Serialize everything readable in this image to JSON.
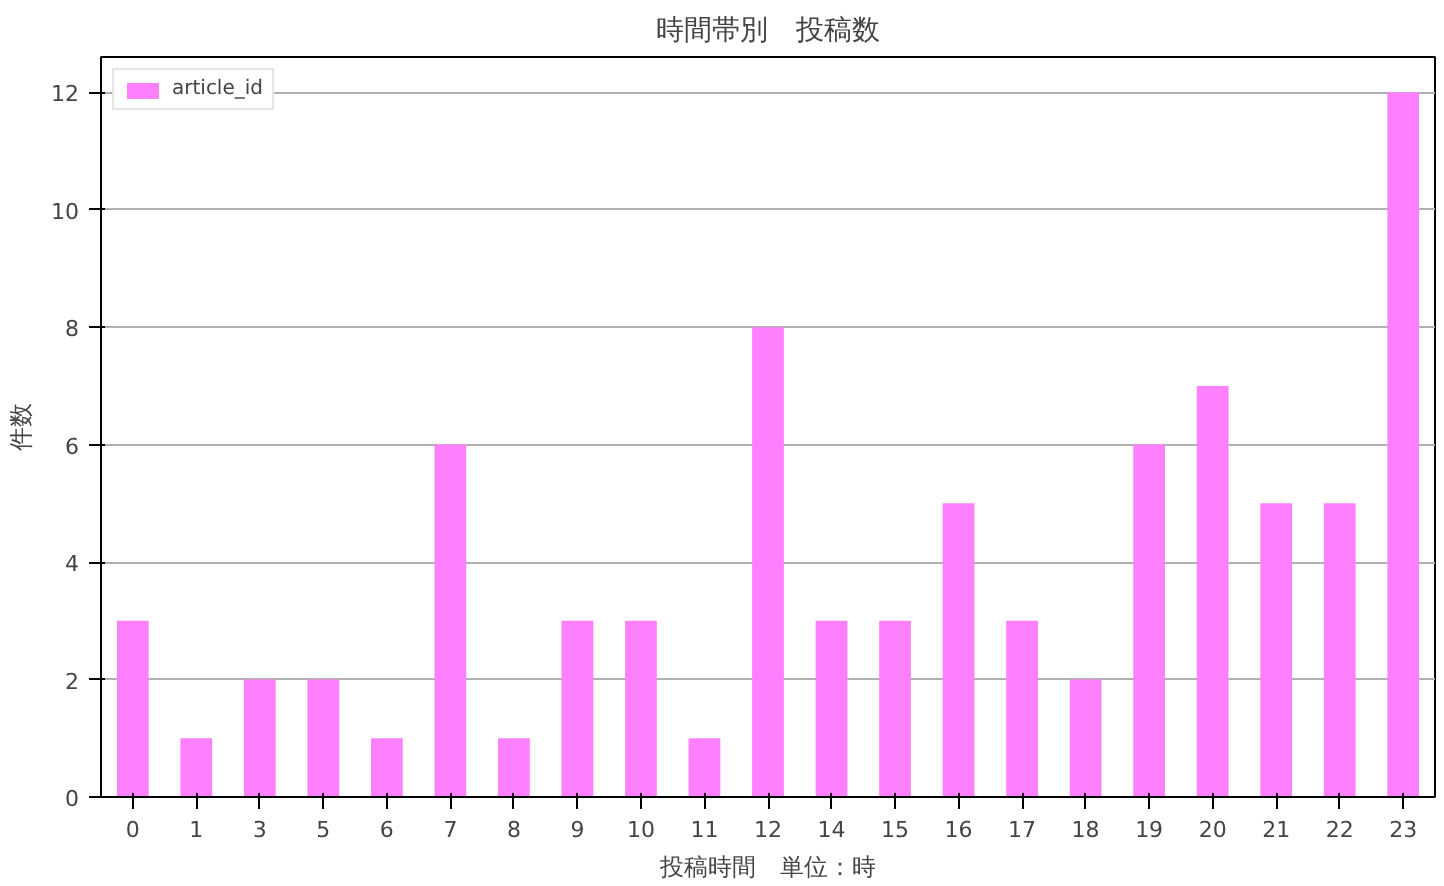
{
  "chart_data": {
    "type": "bar",
    "title": "時間帯別　投稿数",
    "xlabel": "投稿時間　単位：時",
    "ylabel": "件数",
    "categories": [
      "0",
      "1",
      "3",
      "5",
      "6",
      "7",
      "8",
      "9",
      "10",
      "11",
      "12",
      "14",
      "15",
      "16",
      "17",
      "18",
      "19",
      "20",
      "21",
      "22",
      "23"
    ],
    "series": [
      {
        "name": "article_id",
        "color": "#ff80ff",
        "values": [
          3,
          1,
          2,
          2,
          1,
          6,
          1,
          3,
          3,
          1,
          8,
          3,
          3,
          5,
          3,
          2,
          6,
          7,
          5,
          5,
          12
        ]
      }
    ],
    "ylim": [
      0,
      12.6
    ],
    "yticks": [
      0,
      2,
      4,
      6,
      8,
      10,
      12
    ],
    "grid": "y",
    "legend": "top left"
  }
}
